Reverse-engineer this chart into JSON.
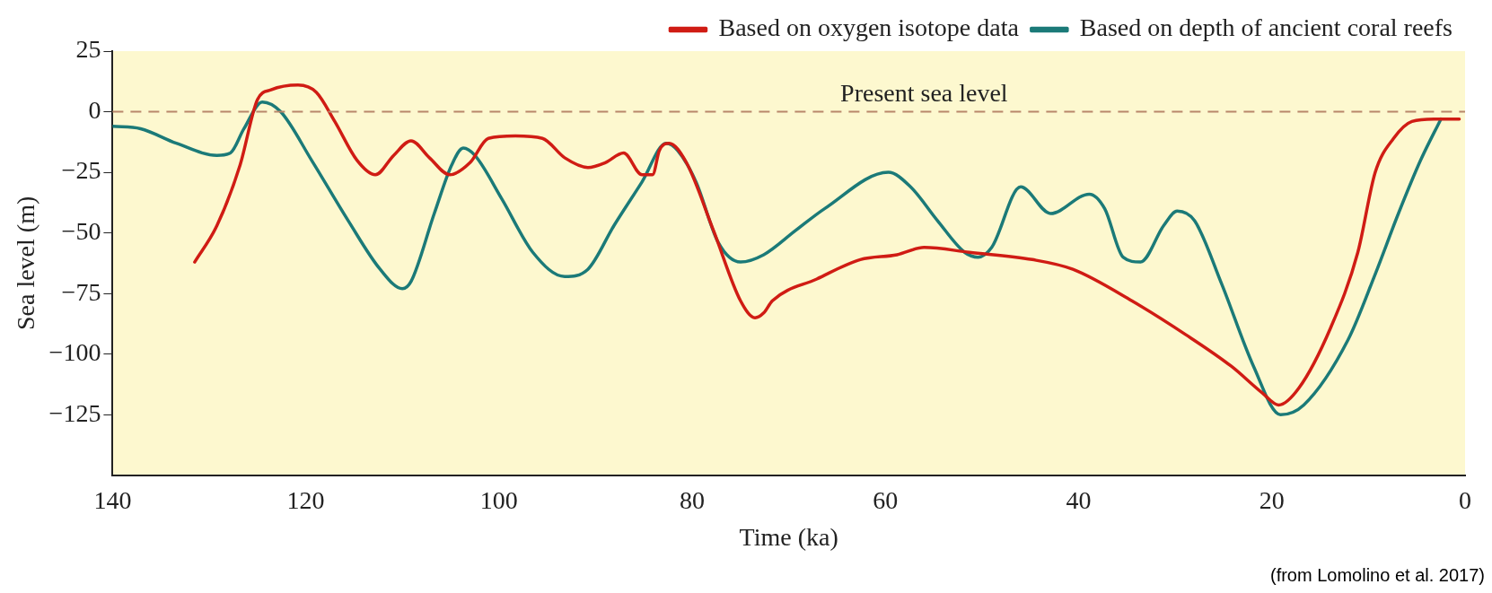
{
  "chart_data": {
    "type": "line",
    "xlabel": "Time (ka)",
    "ylabel": "Sea level (m)",
    "xlim": [
      140,
      0
    ],
    "xticks": [
      140,
      120,
      100,
      80,
      60,
      40,
      20,
      0
    ],
    "ylim": [
      -150,
      25
    ],
    "yticks": [
      25,
      0,
      {
        "value": -25,
        "label": "−25"
      },
      {
        "value": -50,
        "label": "−50"
      },
      {
        "value": -75,
        "label": "−75"
      },
      {
        "value": -100,
        "label": "−100"
      },
      {
        "value": -125,
        "label": "−125"
      }
    ],
    "legend": "top right",
    "marker": "none",
    "line_style": "solid",
    "series": [
      {
        "name": "Based on oxygen isotope data",
        "color": "#d01c14",
        "x": [
          131.5,
          129.2,
          126.8,
          125,
          123.6,
          120.8,
          118.9,
          117,
          114.7,
          112.8,
          110.9,
          109.1,
          107.2,
          105.1,
          103,
          101.1,
          98.3,
          95.5,
          93.2,
          90.8,
          89,
          87.1,
          85.2,
          84.1,
          83.4,
          82.4,
          80.6,
          77.8,
          75,
          73.5,
          72.6,
          71.7,
          67.1,
          62.6,
          58.8,
          56,
          51.3,
          44.8,
          40.6,
          34.5,
          28.9,
          24.2,
          21,
          19.3,
          17.2,
          13.9,
          11.1,
          9.3,
          7.4,
          5.5,
          3.2,
          0.6
        ],
        "values": [
          -62,
          -47,
          -22,
          5,
          9,
          11,
          8,
          -4,
          -20,
          -26,
          -18,
          -12,
          -19,
          -26,
          -21,
          -11,
          -10,
          -11,
          -19,
          -23,
          -21,
          -17,
          -26,
          -26,
          -16,
          -13,
          -21,
          -49,
          -78,
          -85,
          -83,
          -78,
          -69,
          -61,
          -59,
          -56,
          -58,
          -61,
          -65,
          -78,
          -92,
          -105,
          -116,
          -121,
          -114,
          -89,
          -58,
          -25,
          -11,
          -4,
          -3,
          -3
        ]
      },
      {
        "name": "Based on depth of ancient coral reefs",
        "color": "#1b7a78",
        "x": [
          140,
          137.1,
          133.4,
          129.2,
          127.8,
          126.4,
          124.5,
          122.6,
          119.4,
          115.6,
          112.3,
          110,
          109.1,
          106.7,
          104.9,
          103.7,
          102.5,
          99.7,
          96.5,
          93.2,
          90.8,
          88.1,
          85.2,
          82.7,
          81.5,
          79.6,
          77.3,
          75,
          72.6,
          69.3,
          66.3,
          59.7,
          57.4,
          54.6,
          51.8,
          50.4,
          49,
          46,
          42.9,
          38.9,
          37.3,
          35.4,
          33.6,
          31.2,
          29.8,
          28,
          25.2,
          21.9,
          19.1,
          16.7,
          12.1,
          9.3,
          6.9,
          4.6,
          2.5
        ],
        "values": [
          -6,
          -7,
          -13,
          -18,
          -17,
          -7,
          4,
          0,
          -20,
          -45,
          -65,
          -73,
          -70,
          -42,
          -22,
          -15,
          -18,
          -36,
          -58,
          -68,
          -65,
          -47,
          -29,
          -13,
          -16,
          -29,
          -54,
          -62,
          -59,
          -49,
          -40,
          -25,
          -31,
          -45,
          -58,
          -60,
          -56,
          -31,
          -42,
          -34,
          -40,
          -60,
          -62,
          -47,
          -41,
          -45,
          -71,
          -105,
          -125,
          -121,
          -94,
          -67,
          -42,
          -20,
          -3
        ]
      }
    ],
    "ref_lines": [
      {
        "axis": "y",
        "value": 0,
        "label": "Present sea level",
        "color": "#b8866a",
        "line_style": "dashed"
      }
    ],
    "annotations": [
      "(from Lomolino et al. 2017)"
    ]
  }
}
